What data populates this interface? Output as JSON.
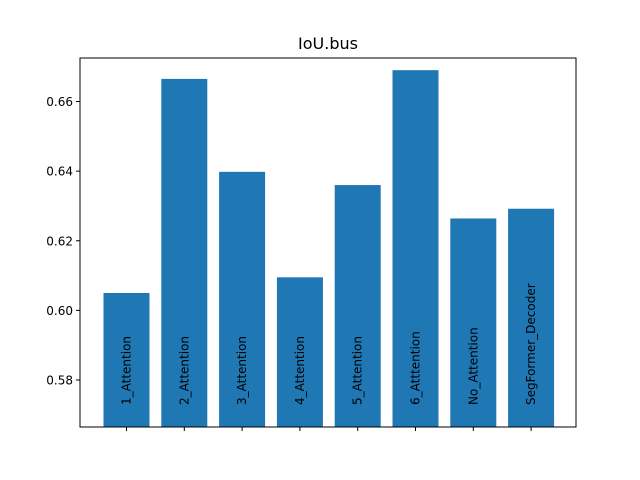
{
  "chart_data": {
    "type": "bar",
    "title": "IoU.bus",
    "xlabel": "",
    "ylabel": "",
    "categories": [
      "1_Attention",
      "2_Attention",
      "3_Attention",
      "4_Attention",
      "5_Attention",
      "6_Atttention",
      "No_Attention",
      "SegFormer_Decoder"
    ],
    "values": [
      0.605,
      0.6665,
      0.6398,
      0.6095,
      0.636,
      0.669,
      0.6264,
      0.6292
    ],
    "ylim": [
      0.5665,
      0.6725
    ],
    "yticks": [
      0.58,
      0.6,
      0.62,
      0.64,
      0.66
    ],
    "ytick_labels": [
      "0.58",
      "0.60",
      "0.62",
      "0.64",
      "0.66"
    ],
    "bar_color": "#1f77b4",
    "grid": false,
    "category_labels_inside_bars": true,
    "x_tick_labels_shown": false
  }
}
